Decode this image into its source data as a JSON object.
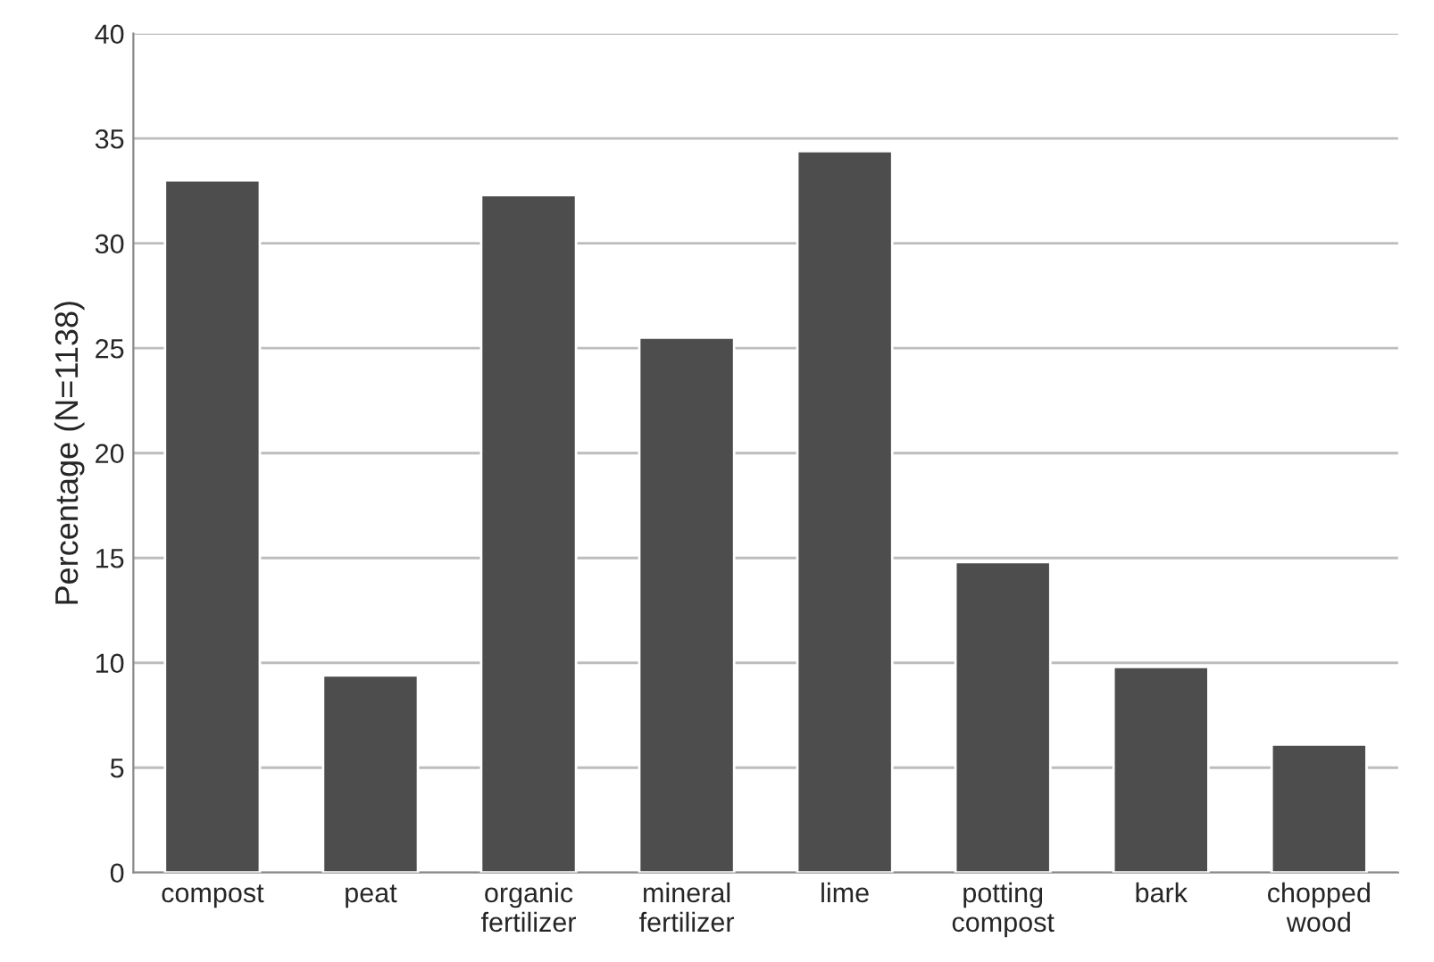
{
  "chart_data": {
    "type": "bar",
    "ylabel": "Percentage (N=1138)",
    "categories": [
      "compost",
      "peat",
      "organic\nfertilizer",
      "mineral\nfertilizer",
      "lime",
      "potting\ncompost",
      "bark",
      "chopped\nwood"
    ],
    "values": [
      33.0,
      9.4,
      32.3,
      25.5,
      34.4,
      14.8,
      9.8,
      6.1
    ],
    "color": "#4d4d4d",
    "ylim": [
      0,
      40
    ],
    "yticks": [
      0,
      5,
      10,
      15,
      20,
      25,
      30,
      35,
      40
    ],
    "grid": "y"
  }
}
